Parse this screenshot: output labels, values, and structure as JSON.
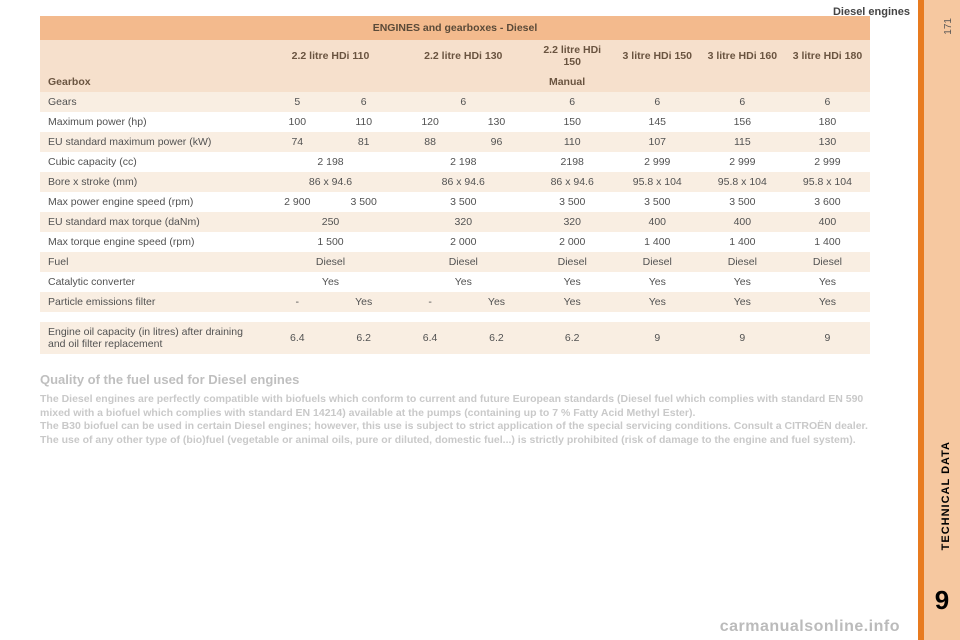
{
  "page": {
    "section_title": "Diesel engines",
    "page_number": "171",
    "tab_label": "TECHNICAL DATA",
    "tab_number": "9",
    "watermark": "carmanualsonline.info"
  },
  "table": {
    "title": "ENGINES and gearboxes - Diesel",
    "colgroup_labels": [
      "2.2 litre HDi 110",
      "2.2 litre HDi 130",
      "2.2 litre HDi 150",
      "3 litre HDi 150",
      "3 litre HDi 160",
      "3 litre HDi 180"
    ],
    "gearbox_label": "Gearbox",
    "gearbox_value": "Manual",
    "rows": [
      {
        "label": "Gears",
        "cells": [
          "5",
          "6",
          "6",
          "",
          "6",
          "6",
          "6",
          "6"
        ],
        "colspan_idx2": true
      },
      {
        "label": "Maximum power (hp)",
        "cells": [
          "100",
          "110",
          "120",
          "130",
          "150",
          "145",
          "156",
          "180"
        ]
      },
      {
        "label": "EU standard maximum power (kW)",
        "cells": [
          "74",
          "81",
          "88",
          "96",
          "110",
          "107",
          "115",
          "130"
        ]
      },
      {
        "label": "Cubic capacity (cc)",
        "merged": [
          [
            "2 198",
            2
          ],
          [
            "2 198",
            2
          ],
          [
            "2198",
            1
          ],
          [
            "2 999",
            1
          ],
          [
            "2 999",
            1
          ],
          [
            "2 999",
            1
          ]
        ]
      },
      {
        "label": "Bore x stroke (mm)",
        "merged": [
          [
            "86 x 94.6",
            2
          ],
          [
            "86 x 94.6",
            2
          ],
          [
            "86 x 94.6",
            1
          ],
          [
            "95.8 x 104",
            1
          ],
          [
            "95.8 x 104",
            1
          ],
          [
            "95.8 x 104",
            1
          ]
        ]
      },
      {
        "label": "Max power engine speed (rpm)",
        "cells": [
          "2 900",
          "3 500",
          "3 500",
          "",
          "3 500",
          "3 500",
          "3 500",
          "3 600"
        ],
        "colspan_idx2": true
      },
      {
        "label": "EU standard max torque (daNm)",
        "merged": [
          [
            "250",
            2
          ],
          [
            "320",
            2
          ],
          [
            "320",
            1
          ],
          [
            "400",
            1
          ],
          [
            "400",
            1
          ],
          [
            "400",
            1
          ]
        ]
      },
      {
        "label": "Max torque engine speed (rpm)",
        "merged": [
          [
            "1 500",
            2
          ],
          [
            "2 000",
            2
          ],
          [
            "2 000",
            1
          ],
          [
            "1 400",
            1
          ],
          [
            "1 400",
            1
          ],
          [
            "1 400",
            1
          ]
        ]
      },
      {
        "label": "Fuel",
        "merged": [
          [
            "Diesel",
            2
          ],
          [
            "Diesel",
            2
          ],
          [
            "Diesel",
            1
          ],
          [
            "Diesel",
            1
          ],
          [
            "Diesel",
            1
          ],
          [
            "Diesel",
            1
          ]
        ]
      },
      {
        "label": "Catalytic converter",
        "merged": [
          [
            "Yes",
            2
          ],
          [
            "Yes",
            2
          ],
          [
            "Yes",
            1
          ],
          [
            "Yes",
            1
          ],
          [
            "Yes",
            1
          ],
          [
            "Yes",
            1
          ]
        ]
      },
      {
        "label": "Particle emissions filter",
        "cells": [
          "-",
          "Yes",
          "-",
          "Yes",
          "Yes",
          "Yes",
          "Yes",
          "Yes"
        ]
      }
    ],
    "final_row": {
      "label": "Engine oil capacity (in litres) after draining and oil filter replacement",
      "cells": [
        "6.4",
        "6.2",
        "6.4",
        "6.2",
        "6.2",
        "9",
        "9",
        "9"
      ]
    },
    "alt_rows": [
      0,
      2,
      4,
      6,
      8,
      10
    ],
    "colors": {
      "header_bg": "#f3ba8d",
      "subheader_bg": "#f6e0cc",
      "alt_bg": "#f9eee2",
      "text": "#525252"
    },
    "col_widths_pct": [
      27,
      8,
      8,
      8,
      8,
      10.25,
      10.25,
      10.25,
      10.25
    ]
  },
  "quality": {
    "title": "Quality of the fuel used for Diesel engines",
    "lines": [
      "The Diesel engines are perfectly compatible with biofuels which conform to current and future European standards (Diesel fuel which complies with standard EN 590 mixed with a biofuel which complies with standard EN 14214) available at the pumps (containing up to 7 % Fatty Acid Methyl Ester).",
      "The B30 biofuel can be used in certain Diesel engines; however, this use is subject to strict application of the special servicing conditions. Consult a CITROËN dealer.",
      "The use of any other type of (bio)fuel (vegetable or animal oils, pure or diluted, domestic fuel...) is strictly prohibited (risk of damage to the engine and fuel system)."
    ]
  }
}
